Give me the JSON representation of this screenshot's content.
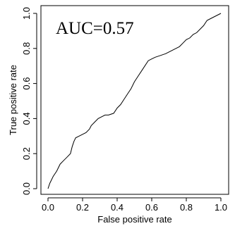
{
  "chart_data": {
    "type": "line",
    "xlabel": "False positive rate",
    "ylabel": "True positive rate",
    "xlim": [
      0,
      1
    ],
    "ylim": [
      0,
      1
    ],
    "x_ticks": [
      "0.0",
      "0.2",
      "0.4",
      "0.6",
      "0.8",
      "1.0"
    ],
    "y_ticks": [
      "0.0",
      "0.2",
      "0.4",
      "0.6",
      "0.8",
      "1.0"
    ],
    "annotation": "AUC=0.57",
    "grid": false,
    "series": [
      {
        "x": [
          0.0,
          0.01,
          0.02,
          0.03,
          0.05,
          0.07,
          0.09,
          0.11,
          0.13,
          0.14,
          0.15,
          0.16,
          0.18,
          0.2,
          0.22,
          0.24,
          0.25,
          0.27,
          0.29,
          0.31,
          0.33,
          0.35,
          0.38,
          0.4,
          0.42,
          0.44,
          0.46,
          0.48,
          0.5,
          0.52,
          0.54,
          0.56,
          0.58,
          0.6,
          0.62,
          0.65,
          0.68,
          0.7,
          0.72,
          0.74,
          0.76,
          0.78,
          0.8,
          0.82,
          0.84,
          0.86,
          0.88,
          0.9,
          0.92,
          0.94,
          0.96,
          0.98,
          1.0
        ],
        "y": [
          0.0,
          0.03,
          0.05,
          0.07,
          0.1,
          0.14,
          0.16,
          0.18,
          0.2,
          0.24,
          0.27,
          0.29,
          0.3,
          0.31,
          0.32,
          0.34,
          0.36,
          0.38,
          0.4,
          0.41,
          0.42,
          0.42,
          0.43,
          0.46,
          0.48,
          0.51,
          0.54,
          0.57,
          0.61,
          0.64,
          0.67,
          0.7,
          0.73,
          0.74,
          0.75,
          0.76,
          0.77,
          0.78,
          0.79,
          0.8,
          0.81,
          0.83,
          0.85,
          0.86,
          0.88,
          0.89,
          0.91,
          0.93,
          0.96,
          0.97,
          0.98,
          0.99,
          1.0
        ]
      }
    ]
  }
}
